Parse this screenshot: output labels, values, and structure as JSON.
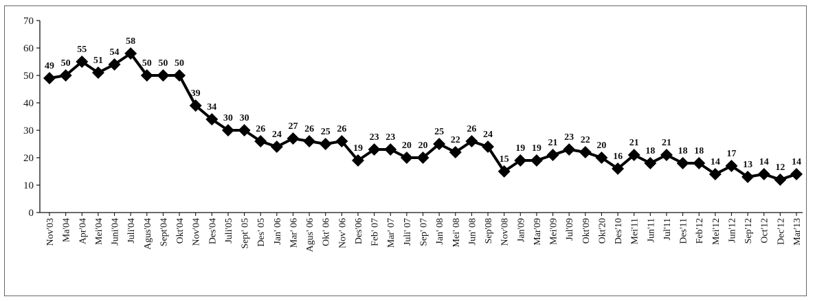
{
  "chart_data": {
    "type": "line",
    "title": "",
    "xlabel": "",
    "ylabel": "",
    "ylim": [
      0,
      70
    ],
    "yticks": [
      0,
      10,
      20,
      30,
      40,
      50,
      60,
      70
    ],
    "grid": false,
    "legend": "none",
    "marker": "diamond",
    "line_color": "#000000",
    "categories": [
      "Nov'03",
      "Ma'04",
      "Apr'04",
      "Mei'04",
      "Juni'04",
      "Juli'04",
      "Agus'04",
      "Sept'04",
      "Okt'04",
      "Nov'04",
      "Des'04",
      "Juli'05",
      "Sept' 05",
      "Des' 05",
      "Jan' 06",
      "Mar' 06",
      "Agus' 06",
      "Okt' 06",
      "Nov' 06",
      "Des'06",
      "Feb' 07",
      "Mar' 07",
      "Juli' 07",
      "Sep' 07",
      "Jan' 08",
      "Mei' 08",
      "Jun' 08",
      "Sep'08",
      "Nov'08",
      "Jan'09",
      "Mar'09",
      "Mei'09",
      "Jul'09",
      "Okt'09",
      "Okt'20",
      "Des'10",
      "Mei'11",
      "Jun'11",
      "Jul'11",
      "Des'11",
      "Feb'12",
      "Mei'12",
      "Jun'12",
      "Sep'12",
      "Oct'12",
      "Dec'12",
      "Mar'13"
    ],
    "series": [
      {
        "values": [
          49,
          50,
          55,
          51,
          54,
          58,
          50,
          50,
          50,
          39,
          34,
          30,
          30,
          26,
          24,
          27,
          26,
          25,
          26,
          19,
          23,
          23,
          20,
          20,
          25,
          22,
          26,
          24,
          15,
          19,
          19,
          21,
          23,
          22,
          20,
          16,
          21,
          18,
          21,
          18,
          18,
          14,
          17,
          13,
          14,
          12,
          14
        ]
      }
    ]
  }
}
